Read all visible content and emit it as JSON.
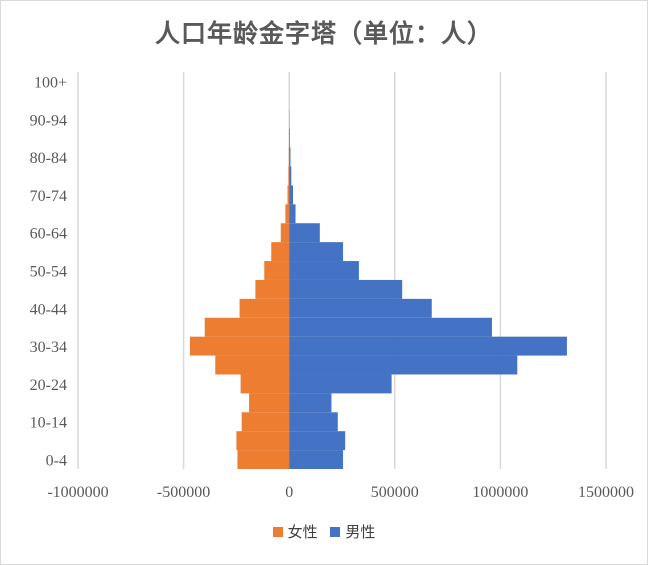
{
  "chart_data": {
    "type": "bar",
    "orientation": "horizontal",
    "title": "人口年龄金字塔（单位：人）",
    "xlabel": "",
    "ylabel": "",
    "xlim": [
      -1000000,
      1500000
    ],
    "x_ticks": [
      -1000000,
      -500000,
      0,
      500000,
      1000000,
      1500000
    ],
    "x_tick_labels": [
      "-1000000",
      "-500000",
      "0",
      "500000",
      "1000000",
      "1500000"
    ],
    "categories": [
      "0-4",
      "5-9",
      "10-14",
      "15-19",
      "20-24",
      "25-29",
      "30-34",
      "35-39",
      "40-44",
      "45-49",
      "50-54",
      "55-59",
      "60-64",
      "65-69",
      "70-74",
      "75-79",
      "80-84",
      "85-89",
      "90-94",
      "95-99",
      "100+"
    ],
    "category_labels_shown": [
      "0-4",
      "",
      "10-14",
      "",
      "20-24",
      "",
      "30-34",
      "",
      "40-44",
      "",
      "50-54",
      "",
      "60-64",
      "",
      "70-74",
      "",
      "80-84",
      "",
      "90-94",
      "",
      "100+"
    ],
    "grid": true,
    "legend_position": "bottom",
    "series": [
      {
        "name": "女性",
        "color": "#ed7d31",
        "values": [
          -245000,
          -250000,
          -225000,
          -190000,
          -230000,
          -350000,
          -470000,
          -400000,
          -235000,
          -160000,
          -118000,
          -85000,
          -40000,
          -18000,
          -8000,
          -4000,
          -2000,
          -1000,
          0,
          0,
          0
        ]
      },
      {
        "name": "男性",
        "color": "#4472c4",
        "values": [
          255000,
          265000,
          230000,
          200000,
          485000,
          1080000,
          1315000,
          960000,
          675000,
          535000,
          330000,
          255000,
          145000,
          30000,
          18000,
          10000,
          6000,
          3000,
          1000,
          0,
          0
        ]
      }
    ]
  }
}
